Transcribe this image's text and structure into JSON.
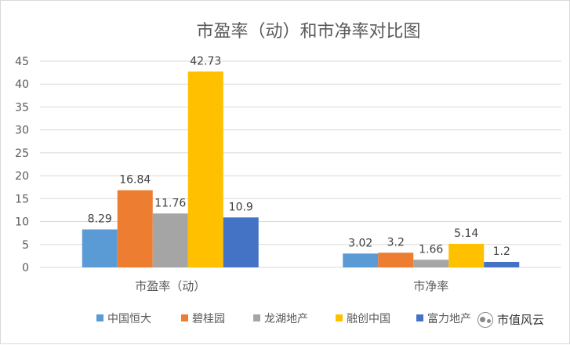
{
  "chart_data": {
    "type": "bar",
    "title": "市盈率（动）和市净率对比图",
    "categories": [
      "市盈率（动）",
      "市净率"
    ],
    "series": [
      {
        "name": "中国恒大",
        "color": "#5b9bd5",
        "values": [
          8.29,
          3.02
        ]
      },
      {
        "name": "碧桂园",
        "color": "#ed7d31",
        "values": [
          16.84,
          3.2
        ]
      },
      {
        "name": "龙湖地产",
        "color": "#a5a5a5",
        "values": [
          11.76,
          1.66
        ]
      },
      {
        "name": "融创中国",
        "color": "#ffc000",
        "values": [
          42.73,
          5.14
        ]
      },
      {
        "name": "富力地产",
        "color": "#4472c4",
        "values": [
          10.9,
          1.2
        ]
      }
    ],
    "ylim": [
      0,
      45
    ],
    "yticks": [
      0,
      5,
      10,
      15,
      20,
      25,
      30,
      35,
      40,
      45
    ],
    "grid": true,
    "legend_position": "bottom"
  },
  "watermark": {
    "text": "市值风云",
    "icon": "wechat-icon"
  }
}
